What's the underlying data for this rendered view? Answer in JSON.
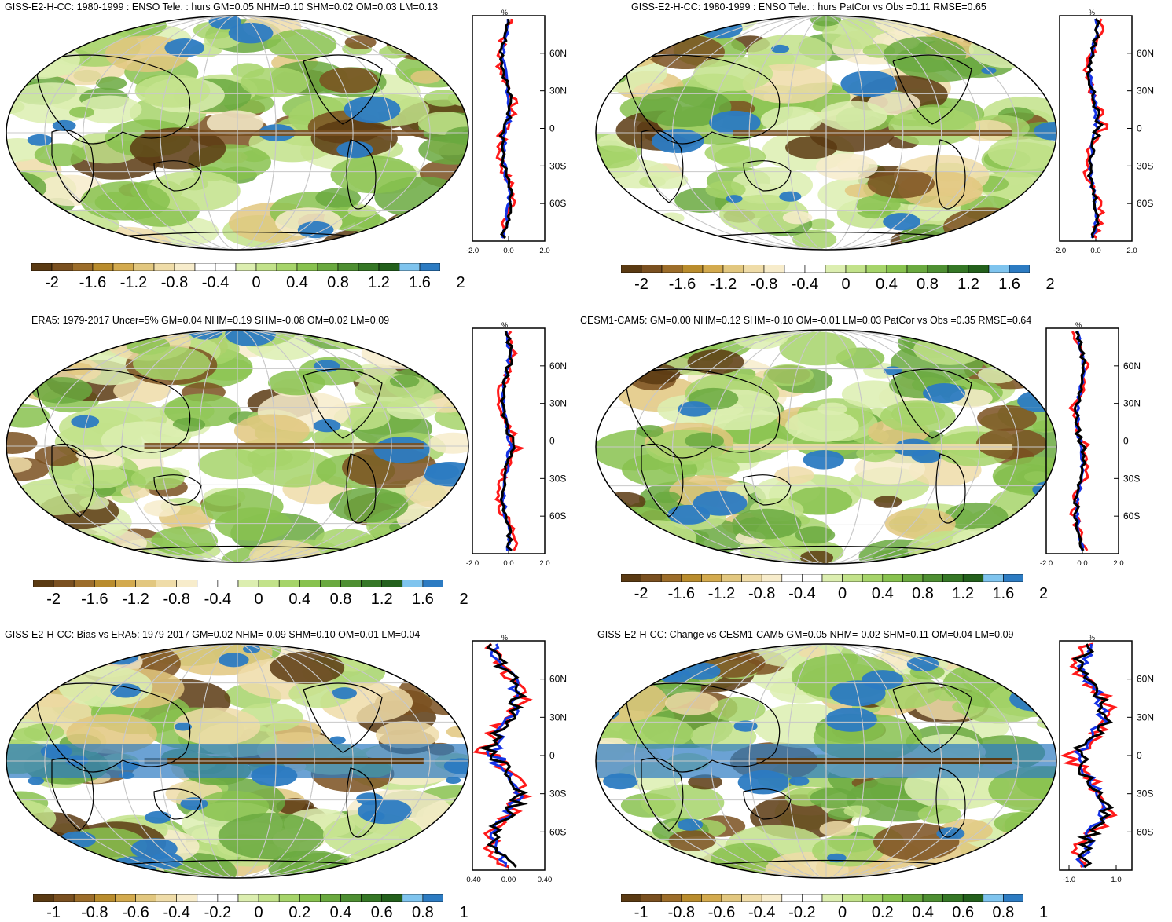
{
  "colors": {
    "palette": [
      "#5a3a12",
      "#7a5020",
      "#9c6d2a",
      "#b98c2d",
      "#d3aa4e",
      "#e2c77f",
      "#efdca8",
      "#f7eccb",
      "#ffffff",
      "#ffffff",
      "#dceeb0",
      "#c2e28a",
      "#a6d46a",
      "#88c24f",
      "#6aa93f",
      "#4e8f32",
      "#357726",
      "#23601c",
      "#7fc4ee",
      "#2c7bc2"
    ],
    "ocean": "#ffffff",
    "profile_model": "#ff1a1a",
    "profile_obs": "#1432e6",
    "profile_diff": "#000000"
  },
  "panels": [
    {
      "title": "GISS-E2-H-CC: 1980-1999 : ENSO Tele. : hurs GM=0.05 NHM=0.10 SHM=0.02 OM=0.03 LM=0.13",
      "colorbar_labels": [
        "-2",
        "-1.6",
        "-1.2",
        "-0.8",
        "-0.4",
        "0",
        "0.4",
        "0.8",
        "1.2",
        "1.6",
        "2"
      ],
      "profile": {
        "unit": "%",
        "xticks": [
          "-2.0",
          "0.0",
          "2.0"
        ],
        "lat_labels": [
          "60N",
          "30N",
          "0",
          "30S",
          "60S"
        ]
      }
    },
    {
      "title": "GISS-E2-H-CC: 1980-1999 : ENSO Tele. : hurs PatCor vs Obs =0.11 RMSE=0.65",
      "colorbar_labels": [
        "-2",
        "-1.6",
        "-1.2",
        "-0.8",
        "-0.4",
        "0",
        "0.4",
        "0.8",
        "1.2",
        "1.6",
        "2"
      ],
      "profile": {
        "unit": "%",
        "xticks": [
          "-2.0",
          "0.0",
          "2.0"
        ],
        "lat_labels": [
          "60N",
          "30N",
          "0",
          "30S",
          "60S"
        ]
      }
    },
    {
      "title": "ERA5: 1979-2017 Uncer=5% GM=0.04 NHM=0.19 SHM=-0.08 OM=0.02 LM=0.09",
      "colorbar_labels": [
        "-2",
        "-1.6",
        "-1.2",
        "-0.8",
        "-0.4",
        "0",
        "0.4",
        "0.8",
        "1.2",
        "1.6",
        "2"
      ],
      "profile": {
        "unit": "%",
        "xticks": [
          "-2.0",
          "0.0",
          "2.0"
        ],
        "lat_labels": [
          "60N",
          "30N",
          "0",
          "30S",
          "60S"
        ]
      }
    },
    {
      "title": "CESM1-CAM5: GM=0.00 NHM=0.12 SHM=-0.10 OM=-0.01 LM=0.03 PatCor vs Obs =0.35 RMSE=0.64",
      "colorbar_labels": [
        "-2",
        "-1.6",
        "-1.2",
        "-0.8",
        "-0.4",
        "0",
        "0.4",
        "0.8",
        "1.2",
        "1.6",
        "2"
      ],
      "profile": {
        "unit": "%",
        "xticks": [
          "-2.0",
          "0.0",
          "2.0"
        ],
        "lat_labels": [
          "60N",
          "30N",
          "0",
          "30S",
          "60S"
        ]
      }
    },
    {
      "title": "GISS-E2-H-CC: Bias vs ERA5: 1979-2017 GM=0.02 NHM=-0.09 SHM=0.10 OM=0.01 LM=0.04",
      "colorbar_labels": [
        "-1",
        "-0.8",
        "-0.6",
        "-0.4",
        "-0.2",
        "0",
        "0.2",
        "0.4",
        "0.6",
        "0.8",
        "1"
      ],
      "profile": {
        "unit": "%",
        "xticks": [
          "-0.40",
          "0.00",
          "0.40"
        ],
        "lat_labels": [
          "60N",
          "30N",
          "0",
          "30S",
          "60S"
        ]
      }
    },
    {
      "title": "GISS-E2-H-CC: Change vs CESM1-CAM5 GM=0.05 NHM=-0.02 SHM=0.11 OM=0.04 LM=0.09",
      "colorbar_labels": [
        "-1",
        "-0.8",
        "-0.6",
        "-0.4",
        "-0.2",
        "0",
        "0.2",
        "0.4",
        "0.6",
        "0.8",
        "1"
      ],
      "profile": {
        "unit": "%",
        "xticks": [
          "-1.0",
          "1.0"
        ],
        "lat_labels": [
          "60N",
          "30N",
          "0",
          "30S",
          "60S"
        ]
      }
    }
  ]
}
